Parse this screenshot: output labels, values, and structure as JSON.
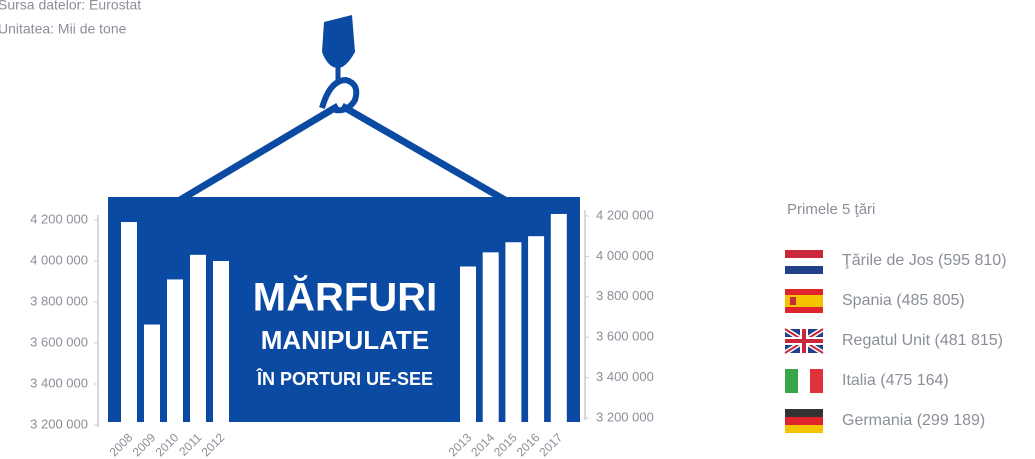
{
  "chart_data": {
    "type": "bar",
    "source": "Sursa datelor: Eurostat",
    "unit": "Unitatea: Mii de tone",
    "title_lines": [
      "MĂRFURI",
      "MANIPULATE",
      "ÎN PORTURI UE-SEE"
    ],
    "categories": [
      "2008",
      "2009",
      "2010",
      "2011",
      "2012",
      "2013",
      "2014",
      "2015",
      "2016",
      "2017"
    ],
    "values": [
      4190000,
      3690000,
      3910000,
      4030000,
      4000000,
      3950000,
      4020000,
      4070000,
      4100000,
      4210000
    ],
    "color": "#ffffff",
    "ylim": [
      3200000,
      4200000
    ],
    "yticks": [
      {
        "value": 3200000,
        "label": "3 200 000"
      },
      {
        "value": 3400000,
        "label": "3 400 000"
      },
      {
        "value": 3600000,
        "label": "3 600 000"
      },
      {
        "value": 3800000,
        "label": "3 800 000"
      },
      {
        "value": 4000000,
        "label": "4 000 000"
      },
      {
        "value": 4200000,
        "label": "4 200 000"
      }
    ],
    "y2lim": [
      3200000,
      4200000
    ],
    "y2ticks": [
      {
        "value": 3200000,
        "label": "3 200 000"
      },
      {
        "value": 3400000,
        "label": "3 400 000"
      },
      {
        "value": 3600000,
        "label": "3 600 000"
      },
      {
        "value": 3800000,
        "label": "3 800 000"
      },
      {
        "value": 4000000,
        "label": "4 000 000"
      },
      {
        "value": 4200000,
        "label": "4 200 000"
      }
    ],
    "legend_title": "Primele 5 ţări",
    "top_countries": [
      "Ţările de Jos (595 810)",
      "Spania (485 805)",
      "Regatul Unit (481 815)",
      "Italia (475 164)",
      "Germania (299 189)"
    ]
  }
}
